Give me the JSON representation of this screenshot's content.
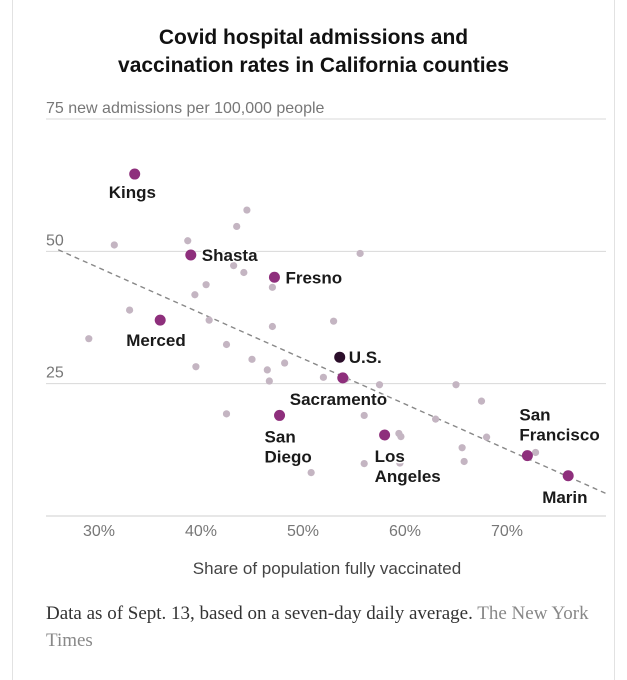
{
  "title_line1": "Covid hospital admissions and",
  "title_line2": "vaccination rates in California counties",
  "note": "Data as of Sept. 13, based on a seven-day daily average.",
  "credit": "The New York Times",
  "colors": {
    "highlight": "#8e2f7c",
    "us": "#2b0e2a",
    "other": "#c4b5c2",
    "trend": "#888888",
    "grid": "#d8d8d8",
    "axis_text": "#777777"
  },
  "chart_data": {
    "type": "scatter",
    "title": "Covid hospital admissions and vaccination rates in California counties",
    "xlabel": "Share of population fully vaccinated",
    "ylabel": "new admissions per 100,000 people",
    "xlim": [
      26,
      80
    ],
    "ylim": [
      0,
      75
    ],
    "x_ticks": [
      {
        "value": 30,
        "label": "30%"
      },
      {
        "value": 40,
        "label": "40%"
      },
      {
        "value": 50,
        "label": "50%"
      },
      {
        "value": 60,
        "label": "60%"
      },
      {
        "value": 70,
        "label": "70%"
      }
    ],
    "y_ticks": [
      {
        "value": 75,
        "label": "75 new admissions per 100,000 people"
      },
      {
        "value": 50,
        "label": "50"
      },
      {
        "value": 25,
        "label": "25"
      }
    ],
    "grid": true,
    "trendline": {
      "from": [
        26,
        50.3
      ],
      "to": [
        80,
        4.0
      ],
      "style": "dashed"
    },
    "labeled_points": [
      {
        "name": "Kings",
        "label_lines": [
          "Kings"
        ],
        "x": 33.5,
        "y": 64.6,
        "kind": "county"
      },
      {
        "name": "Shasta",
        "label_lines": [
          "Shasta"
        ],
        "x": 39.0,
        "y": 49.3,
        "kind": "county"
      },
      {
        "name": "Fresno",
        "label_lines": [
          "Fresno"
        ],
        "x": 47.2,
        "y": 45.1,
        "kind": "county"
      },
      {
        "name": "Merced",
        "label_lines": [
          "Merced"
        ],
        "x": 36.0,
        "y": 37.0,
        "kind": "county"
      },
      {
        "name": "U.S.",
        "label_lines": [
          "U.S."
        ],
        "x": 53.6,
        "y": 30.0,
        "kind": "us"
      },
      {
        "name": "Sacramento",
        "label_lines": [
          "Sacramento"
        ],
        "x": 53.9,
        "y": 26.1,
        "kind": "county"
      },
      {
        "name": "San Diego",
        "label_lines": [
          "San",
          "Diego"
        ],
        "x": 47.7,
        "y": 19.0,
        "kind": "county"
      },
      {
        "name": "Los Angeles",
        "label_lines": [
          "Los",
          "Angeles"
        ],
        "x": 58.0,
        "y": 15.3,
        "kind": "county"
      },
      {
        "name": "San Francisco",
        "label_lines": [
          "San",
          "Francisco"
        ],
        "x": 72.0,
        "y": 11.4,
        "kind": "county"
      },
      {
        "name": "Marin",
        "label_lines": [
          "Marin"
        ],
        "x": 76.0,
        "y": 7.6,
        "kind": "county"
      }
    ],
    "other_points": [
      {
        "x": 29.0,
        "y": 33.5
      },
      {
        "x": 31.5,
        "y": 51.2
      },
      {
        "x": 33.0,
        "y": 38.9
      },
      {
        "x": 38.7,
        "y": 52.0
      },
      {
        "x": 39.4,
        "y": 41.8
      },
      {
        "x": 39.5,
        "y": 28.2
      },
      {
        "x": 40.5,
        "y": 43.7
      },
      {
        "x": 40.8,
        "y": 37.0
      },
      {
        "x": 42.5,
        "y": 32.4
      },
      {
        "x": 42.5,
        "y": 19.3
      },
      {
        "x": 43.2,
        "y": 47.3
      },
      {
        "x": 43.5,
        "y": 54.7
      },
      {
        "x": 44.2,
        "y": 46.0
      },
      {
        "x": 44.5,
        "y": 57.8
      },
      {
        "x": 45.0,
        "y": 29.6
      },
      {
        "x": 46.5,
        "y": 27.6
      },
      {
        "x": 46.7,
        "y": 25.5
      },
      {
        "x": 47.0,
        "y": 43.2
      },
      {
        "x": 47.0,
        "y": 35.8
      },
      {
        "x": 48.2,
        "y": 28.9
      },
      {
        "x": 50.8,
        "y": 8.2
      },
      {
        "x": 52.0,
        "y": 26.2
      },
      {
        "x": 53.0,
        "y": 36.8
      },
      {
        "x": 54.2,
        "y": 25.9
      },
      {
        "x": 55.6,
        "y": 49.6
      },
      {
        "x": 56.0,
        "y": 19.0
      },
      {
        "x": 56.0,
        "y": 9.9
      },
      {
        "x": 57.5,
        "y": 24.8
      },
      {
        "x": 59.4,
        "y": 15.6
      },
      {
        "x": 59.6,
        "y": 15.0
      },
      {
        "x": 59.5,
        "y": 10.0
      },
      {
        "x": 63.0,
        "y": 18.3
      },
      {
        "x": 65.0,
        "y": 24.8
      },
      {
        "x": 65.6,
        "y": 12.9
      },
      {
        "x": 65.8,
        "y": 10.3
      },
      {
        "x": 67.5,
        "y": 21.7
      },
      {
        "x": 68.0,
        "y": 14.9
      },
      {
        "x": 72.8,
        "y": 12.0
      }
    ]
  }
}
